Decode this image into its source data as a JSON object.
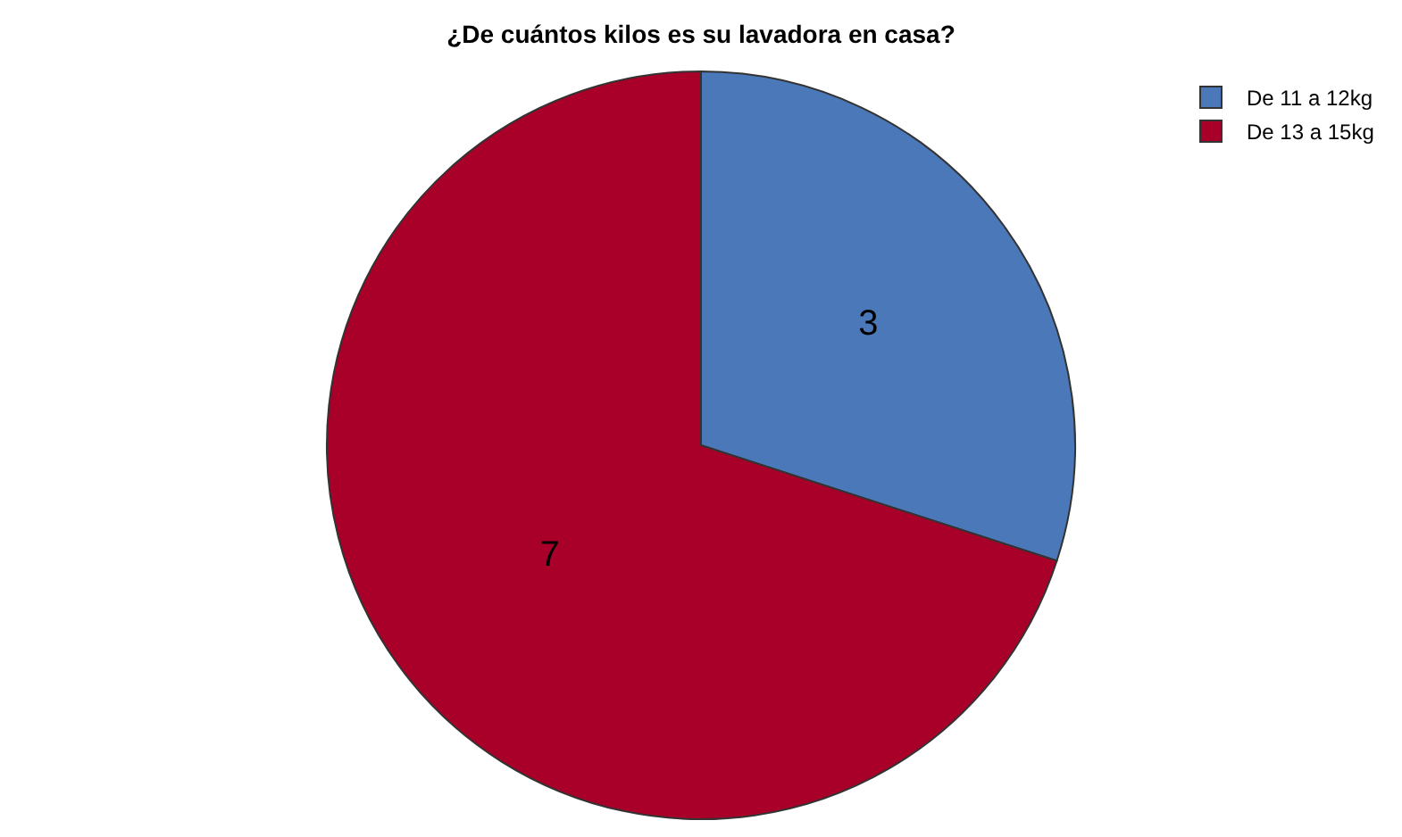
{
  "chart_data": {
    "type": "pie",
    "title": "¿De cuántos kilos es su lavadora en casa?",
    "categories": [
      "De 11 a 12kg",
      "De 13 a 15kg"
    ],
    "values": [
      3,
      7
    ],
    "colors": [
      "#4a78b8",
      "#a80028"
    ],
    "data_labels": true,
    "legend": "top right"
  }
}
